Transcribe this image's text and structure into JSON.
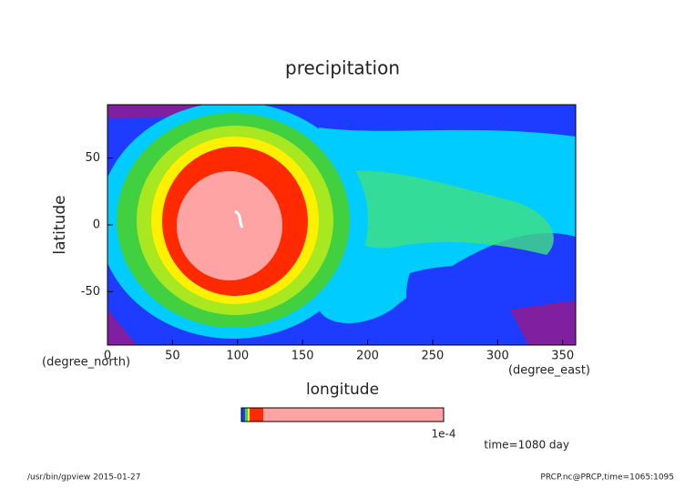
{
  "chart_data": {
    "type": "contour",
    "title": "precipitation",
    "xlabel": "longitude",
    "ylabel": "latitude",
    "xunit": "(degree_east)",
    "yunit": "(degree_north)",
    "xlim": [
      0,
      360
    ],
    "xticks": [
      0,
      50,
      100,
      150,
      200,
      250,
      300,
      350
    ],
    "ylim": [
      -90,
      90
    ],
    "yticks": [
      -50,
      0,
      50
    ],
    "colorbar_label": "1e-4",
    "annotation": "time=1080 day",
    "footer_left": "/usr/bin/gpview  2015-01-27",
    "footer_right": "PRCP.nc@PRCP,time=1065:1095"
  }
}
